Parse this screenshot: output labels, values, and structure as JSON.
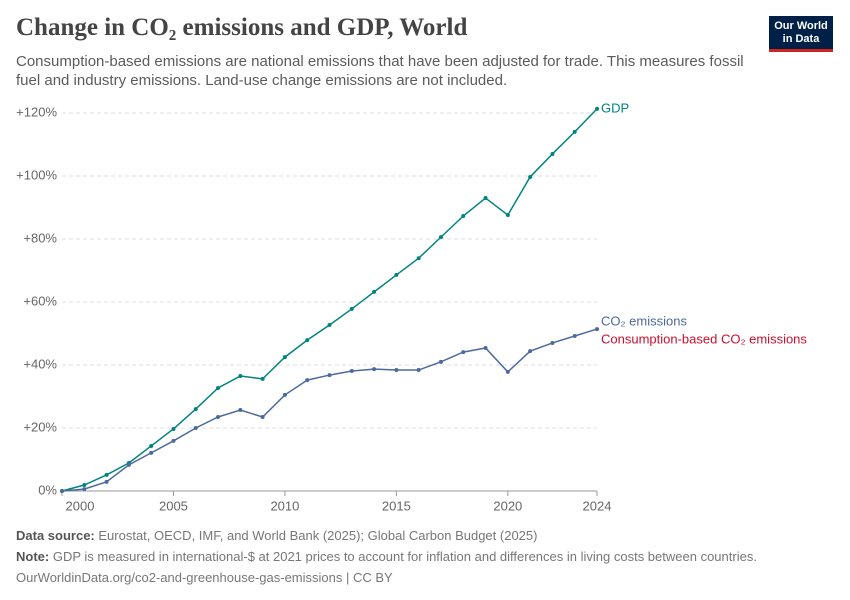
{
  "chart_data": {
    "type": "line",
    "title": "Change in CO₂ emissions and GDP, World",
    "subtitle": "Consumption-based emissions are national emissions that have been adjusted for trade. This measures fossil fuel and industry emissions. Land-use change emissions are not included.",
    "logo": [
      "Our World",
      "in Data"
    ],
    "x": [
      2000,
      2001,
      2002,
      2003,
      2004,
      2005,
      2006,
      2007,
      2008,
      2009,
      2010,
      2011,
      2012,
      2013,
      2014,
      2015,
      2016,
      2017,
      2018,
      2019,
      2020,
      2021,
      2022,
      2023,
      2024
    ],
    "series": [
      {
        "name": "GDP",
        "color": "#00847e",
        "values": [
          0,
          1.9,
          5.1,
          8.9,
          14.3,
          19.7,
          26,
          32.7,
          36.5,
          35.6,
          42.5,
          47.9,
          52.7,
          57.8,
          63.2,
          68.6,
          73.9,
          80.6,
          87.3,
          93,
          87.6,
          99.7,
          107,
          114,
          121.3
        ]
      },
      {
        "name": "CO₂ emissions",
        "color": "#4c6a9c",
        "values": [
          0,
          0.6,
          2.9,
          8.3,
          12.1,
          15.9,
          20,
          23.5,
          25.7,
          23.5,
          30.5,
          35.2,
          36.8,
          38.1,
          38.7,
          38.4,
          38.4,
          41,
          44.1,
          45.4,
          37.8,
          44.4,
          47,
          49.2,
          51.4
        ]
      },
      {
        "name": "Consumption-based CO₂ emissions",
        "color": "#c8102e",
        "values": [
          null,
          null,
          null,
          null,
          null,
          null,
          null,
          null,
          null,
          null,
          null,
          null,
          null,
          null,
          null,
          null,
          null,
          null,
          null,
          null,
          null,
          null,
          null,
          null,
          null
        ]
      }
    ],
    "xlim": [
      2000,
      2024
    ],
    "xticks": [
      2000,
      2005,
      2010,
      2015,
      2020,
      2024
    ],
    "ylim": [
      0,
      120
    ],
    "yticks": [
      {
        "value": 0,
        "label": "0%"
      },
      {
        "value": 20,
        "label": "+20%"
      },
      {
        "value": 40,
        "label": "+40%"
      },
      {
        "value": 60,
        "label": "+60%"
      },
      {
        "value": 80,
        "label": "+80%"
      },
      {
        "value": 100,
        "label": "+100%"
      },
      {
        "value": 120,
        "label": "+120%"
      }
    ],
    "grid": true,
    "source_label": "Data source:",
    "source": "Eurostat, OECD, IMF, and World Bank (2025); Global Carbon Budget (2025)",
    "note_label": "Note:",
    "note": "GDP is measured in international-$ at 2021 prices to account for inflation and differences in living costs between countries.",
    "url": "OurWorldinData.org/co2-and-greenhouse-gas-emissions | CC BY"
  }
}
